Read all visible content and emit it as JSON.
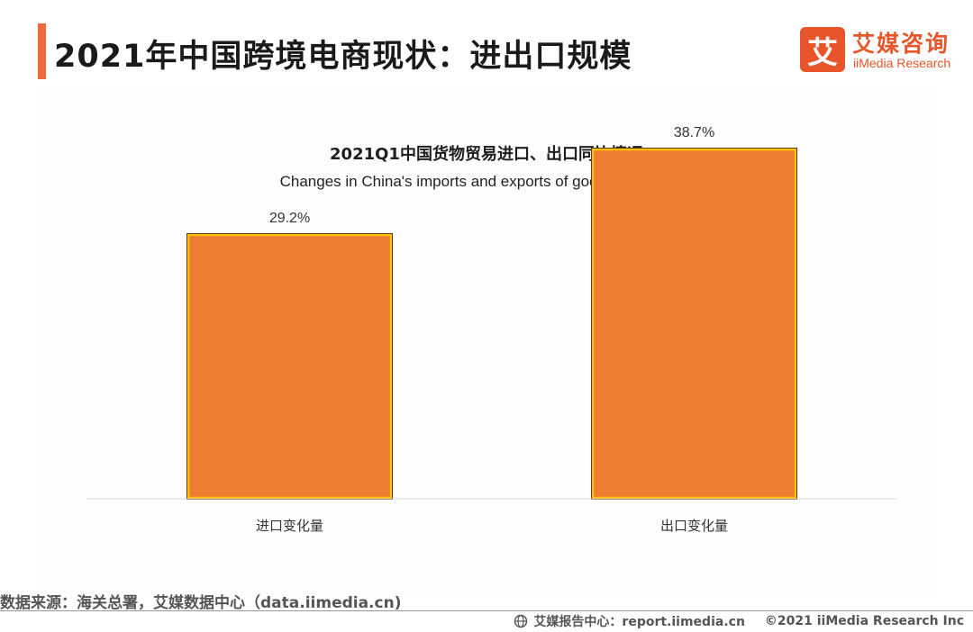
{
  "header": {
    "title": "2021年中国跨境电商现状：进出口规模",
    "logo_mark": "艾",
    "logo_cn": "艾媒咨询",
    "logo_en": "iiMedia Research"
  },
  "chart_data": {
    "type": "bar",
    "title": "2021Q1中国货物贸易进口、出口同比情况",
    "subtitle": "Changes in China's imports and exports of goods in Q1 2021",
    "categories": [
      "进口变化量",
      "出口变化量"
    ],
    "values": [
      29.2,
      38.7
    ],
    "value_labels": [
      "29.2%",
      "38.7%"
    ],
    "ylim": [
      0,
      40
    ],
    "grid": false,
    "legend": "none",
    "bar_color": "#ed7d31",
    "bar_border_color": "#ffc000"
  },
  "footer": {
    "source": "数据来源：海关总署，艾媒数据中心（data.iimedia.cn)",
    "report_center": "艾媒报告中心：report.iimedia.cn",
    "copyright": "©2021  iiMedia Research  Inc"
  },
  "colors": {
    "accent": "#ee6a3c",
    "brand": "#e8552b"
  }
}
